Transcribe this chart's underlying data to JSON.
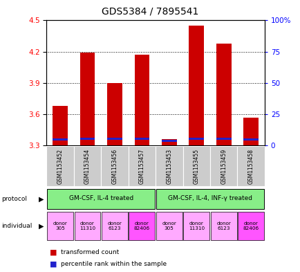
{
  "title": "GDS5384 / 7895541",
  "samples": [
    "GSM1153452",
    "GSM1153454",
    "GSM1153456",
    "GSM1153457",
    "GSM1153453",
    "GSM1153455",
    "GSM1153459",
    "GSM1153458"
  ],
  "red_values": [
    3.68,
    4.19,
    3.9,
    4.17,
    3.36,
    4.45,
    4.28,
    3.57
  ],
  "blue_values": [
    3.345,
    3.355,
    3.355,
    3.355,
    3.335,
    3.355,
    3.355,
    3.345
  ],
  "blue_heights": [
    0.022,
    0.022,
    0.022,
    0.022,
    0.022,
    0.022,
    0.022,
    0.022
  ],
  "ymin": 3.3,
  "ymax": 4.5,
  "yticks": [
    3.3,
    3.6,
    3.9,
    4.2,
    4.5
  ],
  "right_yticks": [
    0,
    25,
    50,
    75,
    100
  ],
  "right_ytick_labels": [
    "0",
    "25",
    "50",
    "75",
    "100%"
  ],
  "protocol_labels": [
    "GM-CSF, IL-4 treated",
    "GM-CSF, IL-4, INF-γ treated"
  ],
  "individual_labels": [
    "donor\n305",
    "donor\n11310",
    "donor\n6123",
    "donor\n82406",
    "donor\n305",
    "donor\n11310",
    "donor\n6123",
    "donor\n82406"
  ],
  "individual_colors": [
    "#ffaaff",
    "#ffaaff",
    "#ffaaff",
    "#ff55ff",
    "#ffaaff",
    "#ffaaff",
    "#ffaaff",
    "#ff55ff"
  ],
  "bar_color": "#cc0000",
  "blue_color": "#2222cc",
  "protocol_color": "#88ee88",
  "sample_bg_color": "#cccccc",
  "legend_red": "transformed count",
  "legend_blue": "percentile rank within the sample",
  "title_fontsize": 10,
  "tick_fontsize": 7.5,
  "bar_width": 0.55
}
